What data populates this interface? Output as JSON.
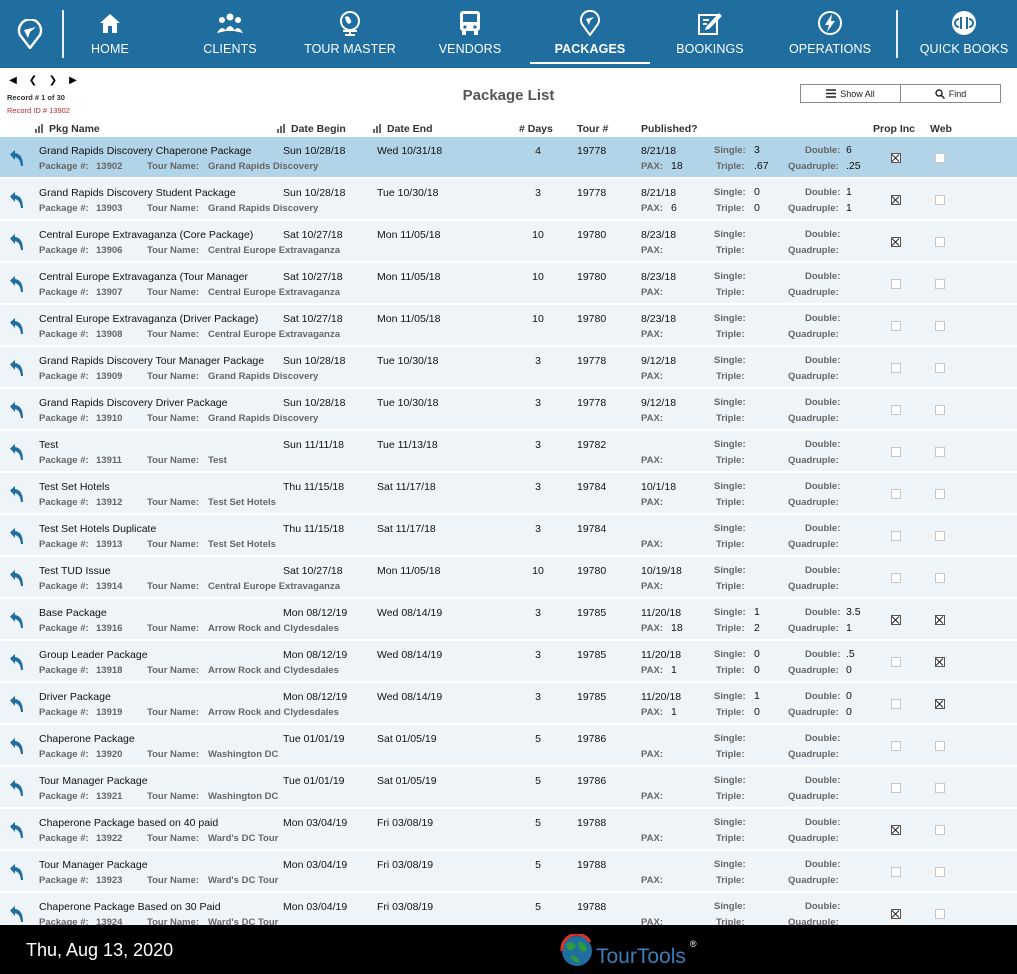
{
  "nav": {
    "items": [
      {
        "label": "HOME",
        "icon": "home-icon"
      },
      {
        "label": "CLIENTS",
        "icon": "clients-icon"
      },
      {
        "label": "TOUR MASTER",
        "icon": "globe-icon"
      },
      {
        "label": "VENDORS",
        "icon": "bus-icon"
      },
      {
        "label": "PACKAGES",
        "icon": "location-pin-icon"
      },
      {
        "label": "BOOKINGS",
        "icon": "edit-icon"
      },
      {
        "label": "OPERATIONS",
        "icon": "bolt-icon"
      },
      {
        "label": "QUICK BOOKS",
        "icon": "quickbooks-icon"
      }
    ],
    "active": "PACKAGES"
  },
  "record": {
    "count_text": "Record # 1 of 30",
    "id_text": "Record ID # 13902"
  },
  "page_title": "Package List",
  "buttons": {
    "show_all": "Show All",
    "find": "Find"
  },
  "columns": {
    "pkg_name": "Pkg Name",
    "date_begin": "Date Begin",
    "date_end": "Date End",
    "days": "# Days",
    "tour": "Tour #",
    "published": "Published?",
    "prop_inc": "Prop Inc",
    "web": "Web"
  },
  "labels": {
    "package_no": "Package #:",
    "tour_name": "Tour Name:",
    "pax": "PAX:",
    "single": "Single:",
    "triple": "Triple:",
    "double": "Double:",
    "quadruple": "Quadruple:"
  },
  "packages": [
    {
      "name": "Grand Rapids Discovery Chaperone Package",
      "pkg": "13902",
      "tour_name": "Grand Rapids Discovery",
      "begin": "Sun 10/28/18",
      "end": "Wed 10/31/18",
      "days": "4",
      "tour": "19778",
      "published": "8/21/18",
      "pax": "18",
      "single": "3",
      "triple": ".67",
      "double": "6",
      "quad": ".25",
      "prop_inc": true,
      "web": false
    },
    {
      "name": "Grand Rapids Discovery Student Package",
      "pkg": "13903",
      "tour_name": "Grand Rapids Discovery",
      "begin": "Sun 10/28/18",
      "end": "Tue 10/30/18",
      "days": "3",
      "tour": "19778",
      "published": "8/21/18",
      "pax": "6",
      "single": "0",
      "triple": "0",
      "double": "1",
      "quad": "1",
      "prop_inc": true,
      "web": false
    },
    {
      "name": "Central Europe Extravaganza (Core Package)",
      "pkg": "13906",
      "tour_name": "Central Europe Extravaganza",
      "begin": "Sat 10/27/18",
      "end": "Mon 11/05/18",
      "days": "10",
      "tour": "19780",
      "published": "8/23/18",
      "pax": "",
      "single": "",
      "triple": "",
      "double": "",
      "quad": "",
      "prop_inc": true,
      "web": false
    },
    {
      "name": "Central Europe Extravaganza (Tour Manager",
      "pkg": "13907",
      "tour_name": "Central Europe Extravaganza",
      "begin": "Sat 10/27/18",
      "end": "Mon 11/05/18",
      "days": "10",
      "tour": "19780",
      "published": "8/23/18",
      "pax": "",
      "single": "",
      "triple": "",
      "double": "",
      "quad": "",
      "prop_inc": false,
      "web": false
    },
    {
      "name": "Central Europe Extravaganza (Driver Package)",
      "pkg": "13908",
      "tour_name": "Central Europe Extravaganza",
      "begin": "Sat 10/27/18",
      "end": "Mon 11/05/18",
      "days": "10",
      "tour": "19780",
      "published": "8/23/18",
      "pax": "",
      "single": "",
      "triple": "",
      "double": "",
      "quad": "",
      "prop_inc": false,
      "web": false
    },
    {
      "name": "Grand Rapids Discovery Tour Manager Package",
      "pkg": "13909",
      "tour_name": "Grand Rapids Discovery",
      "begin": "Sun 10/28/18",
      "end": "Tue 10/30/18",
      "days": "3",
      "tour": "19778",
      "published": "9/12/18",
      "pax": "",
      "single": "",
      "triple": "",
      "double": "",
      "quad": "",
      "prop_inc": false,
      "web": false
    },
    {
      "name": "Grand Rapids Discovery Driver Package",
      "pkg": "13910",
      "tour_name": "Grand Rapids Discovery",
      "begin": "Sun 10/28/18",
      "end": "Tue 10/30/18",
      "days": "3",
      "tour": "19778",
      "published": "9/12/18",
      "pax": "",
      "single": "",
      "triple": "",
      "double": "",
      "quad": "",
      "prop_inc": false,
      "web": false
    },
    {
      "name": "Test",
      "pkg": "13911",
      "tour_name": "Test",
      "begin": "Sun 11/11/18",
      "end": "Tue 11/13/18",
      "days": "3",
      "tour": "19782",
      "published": "",
      "pax": "",
      "single": "",
      "triple": "",
      "double": "",
      "quad": "",
      "prop_inc": false,
      "web": false
    },
    {
      "name": "Test Set Hotels",
      "pkg": "13912",
      "tour_name": "Test Set Hotels",
      "begin": "Thu 11/15/18",
      "end": "Sat 11/17/18",
      "days": "3",
      "tour": "19784",
      "published": "10/1/18",
      "pax": "",
      "single": "",
      "triple": "",
      "double": "",
      "quad": "",
      "prop_inc": false,
      "web": false
    },
    {
      "name": "Test Set Hotels Duplicate",
      "pkg": "13913",
      "tour_name": "Test Set Hotels",
      "begin": "Thu 11/15/18",
      "end": "Sat 11/17/18",
      "days": "3",
      "tour": "19784",
      "published": "",
      "pax": "",
      "single": "",
      "triple": "",
      "double": "",
      "quad": "",
      "prop_inc": false,
      "web": false
    },
    {
      "name": "Test TUD Issue",
      "pkg": "13914",
      "tour_name": "Central Europe Extravaganza",
      "begin": "Sat 10/27/18",
      "end": "Mon 11/05/18",
      "days": "10",
      "tour": "19780",
      "published": "10/19/18",
      "pax": "",
      "single": "",
      "triple": "",
      "double": "",
      "quad": "",
      "prop_inc": false,
      "web": false
    },
    {
      "name": "Base Package",
      "pkg": "13916",
      "tour_name": "Arrow Rock and Clydesdales",
      "begin": "Mon 08/12/19",
      "end": "Wed 08/14/19",
      "days": "3",
      "tour": "19785",
      "published": "11/20/18",
      "pax": "18",
      "single": "1",
      "triple": "2",
      "double": "3.5",
      "quad": "1",
      "prop_inc": true,
      "web": true
    },
    {
      "name": "Group Leader Package",
      "pkg": "13918",
      "tour_name": "Arrow Rock and Clydesdales",
      "begin": "Mon 08/12/19",
      "end": "Wed 08/14/19",
      "days": "3",
      "tour": "19785",
      "published": "11/20/18",
      "pax": "1",
      "single": "0",
      "triple": "0",
      "double": ".5",
      "quad": "0",
      "prop_inc": false,
      "web": true
    },
    {
      "name": "Driver Package",
      "pkg": "13919",
      "tour_name": "Arrow Rock and Clydesdales",
      "begin": "Mon 08/12/19",
      "end": "Wed 08/14/19",
      "days": "3",
      "tour": "19785",
      "published": "11/20/18",
      "pax": "1",
      "single": "1",
      "triple": "0",
      "double": "0",
      "quad": "0",
      "prop_inc": false,
      "web": true
    },
    {
      "name": "Chaperone Package",
      "pkg": "13920",
      "tour_name": "Washington DC",
      "begin": "Tue 01/01/19",
      "end": "Sat 01/05/19",
      "days": "5",
      "tour": "19786",
      "published": "",
      "pax": "",
      "single": "",
      "triple": "",
      "double": "",
      "quad": "",
      "prop_inc": false,
      "web": false
    },
    {
      "name": "Tour Manager Package",
      "pkg": "13921",
      "tour_name": "Washington DC",
      "begin": "Tue 01/01/19",
      "end": "Sat 01/05/19",
      "days": "5",
      "tour": "19786",
      "published": "",
      "pax": "",
      "single": "",
      "triple": "",
      "double": "",
      "quad": "",
      "prop_inc": false,
      "web": false
    },
    {
      "name": "Chaperone Package based on 40 paid",
      "pkg": "13922",
      "tour_name": "Ward's DC Tour",
      "begin": "Mon 03/04/19",
      "end": "Fri 03/08/19",
      "days": "5",
      "tour": "19788",
      "published": "",
      "pax": "",
      "single": "",
      "triple": "",
      "double": "",
      "quad": "",
      "prop_inc": true,
      "web": false
    },
    {
      "name": "Tour Manager Package",
      "pkg": "13923",
      "tour_name": "Ward's DC Tour",
      "begin": "Mon 03/04/19",
      "end": "Fri 03/08/19",
      "days": "5",
      "tour": "19788",
      "published": "",
      "pax": "",
      "single": "",
      "triple": "",
      "double": "",
      "quad": "",
      "prop_inc": false,
      "web": false
    },
    {
      "name": "Chaperone Package Based on 30 Paid",
      "pkg": "13924",
      "tour_name": "Ward's DC Tour",
      "begin": "Mon 03/04/19",
      "end": "Fri 03/08/19",
      "days": "5",
      "tour": "19788",
      "published": "",
      "pax": "",
      "single": "",
      "triple": "",
      "double": "",
      "quad": "",
      "prop_inc": true,
      "web": false
    }
  ],
  "footer": {
    "date": "Thu, Aug 13, 2020",
    "brand": "TourTools",
    "reg": "®"
  },
  "colors": {
    "nav_bg": "#1f6e9f",
    "row_bg": "#eff4f9",
    "row_selected_bg": "#b2d4e8",
    "footer_bg": "#000000",
    "arrow": "#1f6e9f"
  }
}
